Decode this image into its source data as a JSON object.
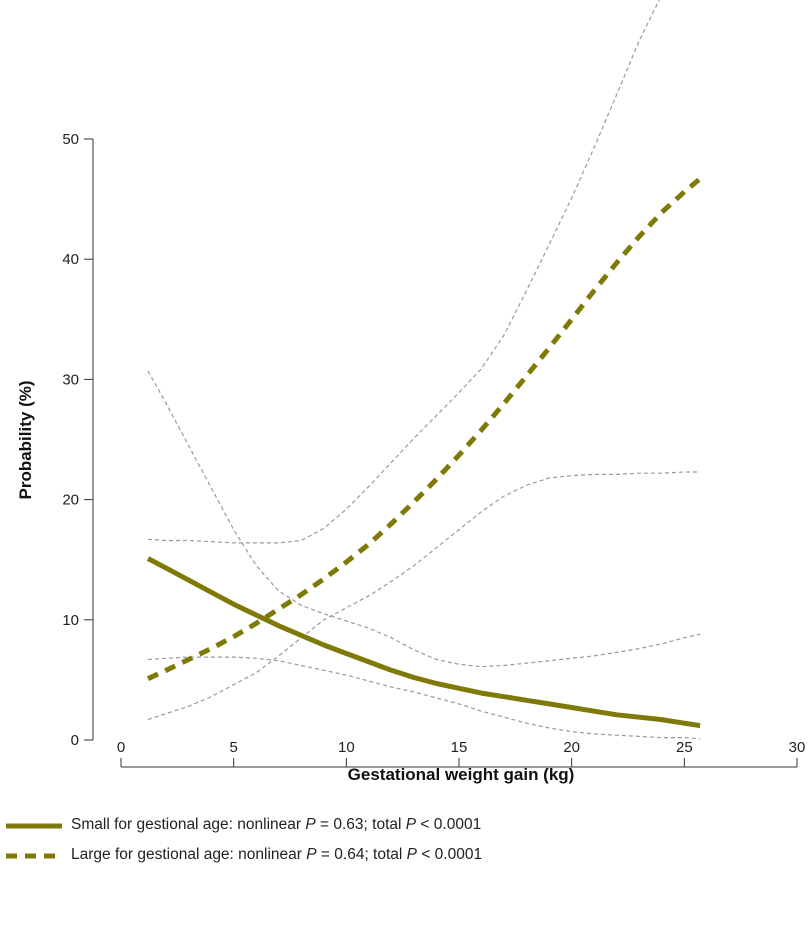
{
  "colors": {
    "series": "#7f7a08",
    "ci": "#9a9a9a",
    "axis": "#333333"
  },
  "chart_data": {
    "type": "line",
    "xlabel": "Gestational weight gain (kg)",
    "ylabel": "Probability (%)",
    "xlim": [
      0,
      30
    ],
    "ylim": [
      0,
      50
    ],
    "x_ticks": [
      0,
      5,
      10,
      15,
      20,
      25,
      30
    ],
    "y_ticks": [
      0,
      10,
      20,
      30,
      40,
      50
    ],
    "grid": false,
    "legend_position": "bottom-left",
    "series": [
      {
        "name": "Small for gestional age",
        "style": "solid",
        "x": [
          1.2,
          2,
          3,
          4,
          5,
          6,
          7,
          8,
          9,
          10,
          11,
          12,
          13,
          14,
          15,
          16,
          17,
          18,
          19,
          20,
          21,
          22,
          23,
          24,
          25,
          25.7
        ],
        "y": [
          15.1,
          14.3,
          13.3,
          12.3,
          11.3,
          10.4,
          9.5,
          8.7,
          7.9,
          7.2,
          6.5,
          5.8,
          5.2,
          4.7,
          4.3,
          3.9,
          3.6,
          3.3,
          3.0,
          2.7,
          2.4,
          2.1,
          1.9,
          1.7,
          1.4,
          1.2
        ],
        "ci_lower": [
          6.7,
          6.8,
          6.9,
          6.9,
          6.9,
          6.8,
          6.6,
          6.2,
          5.8,
          5.4,
          4.9,
          4.4,
          4.0,
          3.5,
          3.0,
          2.4,
          1.9,
          1.4,
          1.0,
          0.7,
          0.5,
          0.4,
          0.3,
          0.2,
          0.2,
          0.1
        ],
        "ci_upper": [
          30.7,
          28.0,
          24.5,
          21.0,
          17.5,
          14.5,
          12.4,
          11.2,
          10.5,
          9.9,
          9.3,
          8.5,
          7.5,
          6.7,
          6.3,
          6.1,
          6.2,
          6.4,
          6.6,
          6.8,
          7.0,
          7.3,
          7.6,
          8.0,
          8.5,
          8.8
        ]
      },
      {
        "name": "Large for gestional age",
        "style": "dashed",
        "x": [
          1.2,
          2,
          3,
          4,
          5,
          6,
          7,
          8,
          9,
          10,
          11,
          12,
          13,
          14,
          15,
          16,
          17,
          18,
          19,
          20,
          21,
          22,
          23,
          24,
          25,
          25.7
        ],
        "y": [
          5.1,
          5.8,
          6.7,
          7.6,
          8.6,
          9.7,
          10.9,
          12.1,
          13.4,
          14.8,
          16.3,
          18.0,
          19.8,
          21.7,
          23.7,
          25.8,
          28.0,
          30.3,
          32.6,
          35.0,
          37.4,
          39.7,
          41.9,
          43.9,
          45.6,
          46.7
        ],
        "ci_lower": [
          1.7,
          2.2,
          2.8,
          3.6,
          4.6,
          5.6,
          7.0,
          8.5,
          10.0,
          11.0,
          12.0,
          13.2,
          14.5,
          16.0,
          17.5,
          19.0,
          20.3,
          21.2,
          21.8,
          22.0,
          22.1,
          22.1,
          22.2,
          22.2,
          22.3,
          22.3
        ],
        "ci_upper": [
          16.7,
          16.6,
          16.6,
          16.5,
          16.4,
          16.4,
          16.4,
          16.6,
          17.6,
          19.2,
          21.1,
          23.1,
          25.1,
          27.0,
          28.9,
          30.9,
          33.7,
          37.4,
          41.2,
          45.1,
          49.3,
          53.7,
          58.2,
          62.0,
          64.5,
          65.5
        ]
      }
    ]
  },
  "legend": [
    {
      "label": "Small for gestional age: nonlinear",
      "p_nonlinear": "P",
      "nonlinear_value": " = 0.63; total ",
      "p_total": "P",
      "total_value": " < 0.0001"
    },
    {
      "label": "Large for gestional age: nonlinear",
      "p_nonlinear": "P",
      "nonlinear_value": " = 0.64; total ",
      "p_total": "P",
      "total_value": " < 0.0001"
    }
  ]
}
